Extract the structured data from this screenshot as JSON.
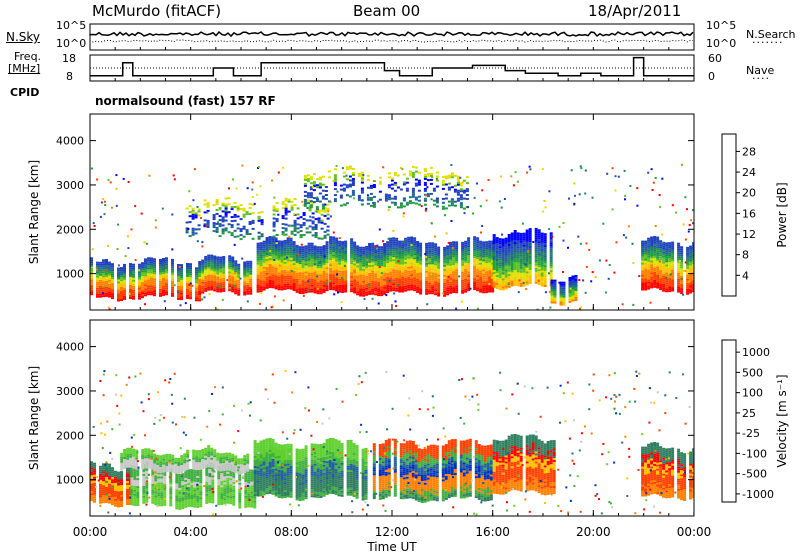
{
  "header": {
    "station": "McMurdo (fitACF)",
    "beam": "Beam 00",
    "date": "18/Apr/2011"
  },
  "strips": {
    "nsky_label": "N.Sky",
    "nsearch_label": "N.Search",
    "freq_label_1": "Freq.",
    "freq_label_2": "[MHz]",
    "nave_label": "Nave",
    "cpid_label": "CPID",
    "cpid_text": "normalsound (fast) 157 RF",
    "noise_ticks_left": [
      "10^5",
      "10^0"
    ],
    "noise_ticks_right": [
      "10^5",
      "10^0"
    ],
    "freq_ticks": [
      "18",
      "8"
    ],
    "nave_ticks": [
      "60",
      "0"
    ],
    "freq_steps_mhz": [
      {
        "t": 0,
        "v": 10
      },
      {
        "t": 1.3,
        "v": 15
      },
      {
        "t": 1.7,
        "v": 10
      },
      {
        "t": 4.9,
        "v": 13
      },
      {
        "t": 5.7,
        "v": 10
      },
      {
        "t": 6.8,
        "v": 15
      },
      {
        "t": 8.3,
        "v": 15
      },
      {
        "t": 9.2,
        "v": 15
      },
      {
        "t": 11.7,
        "v": 12
      },
      {
        "t": 12.3,
        "v": 10
      },
      {
        "t": 13.6,
        "v": 13
      },
      {
        "t": 15.2,
        "v": 14
      },
      {
        "t": 16.5,
        "v": 12
      },
      {
        "t": 17.3,
        "v": 11
      },
      {
        "t": 18.6,
        "v": 10
      },
      {
        "t": 19.5,
        "v": 11
      },
      {
        "t": 20.3,
        "v": 10
      },
      {
        "t": 21.6,
        "v": 17
      },
      {
        "t": 22.0,
        "v": 10
      }
    ]
  },
  "chart_data": [
    {
      "type": "heatmap",
      "parameter": "Power",
      "ylabel": "Slant Range [km]",
      "ylim": [
        180,
        4600
      ],
      "yticks": [
        "1000",
        "2000",
        "3000",
        "4000"
      ],
      "xlim_hours": [
        0,
        24
      ],
      "colorbar": {
        "label": "Power [dB]",
        "tick_labels": [
          "4",
          "8",
          "12",
          "16",
          "20",
          "24",
          "28"
        ],
        "colors": [
          "#0000ff",
          "#2040c0",
          "#2060a0",
          "#208060",
          "#20a040",
          "#60c020",
          "#e0e000",
          "#ffc000",
          "#ff8000",
          "#ff4000",
          "#ff0000"
        ]
      },
      "echo_regions": [
        {
          "t_start": 0.0,
          "t_end": 4.3,
          "r_low": 450,
          "r_high": 1250,
          "level": "high"
        },
        {
          "t_start": 4.3,
          "t_end": 6.5,
          "r_low": 550,
          "r_high": 1300,
          "level": "high"
        },
        {
          "t_start": 6.5,
          "t_end": 9.5,
          "r_low": 600,
          "r_high": 1700,
          "level": "high"
        },
        {
          "t_start": 9.5,
          "t_end": 16.0,
          "r_low": 550,
          "r_high": 1700,
          "level": "high"
        },
        {
          "t_start": 16.0,
          "t_end": 18.3,
          "r_low": 700,
          "r_high": 1900,
          "level": "mid"
        },
        {
          "t_start": 18.3,
          "t_end": 19.3,
          "r_low": 350,
          "r_high": 900,
          "level": "mid"
        },
        {
          "t_start": 21.9,
          "t_end": 24.0,
          "r_low": 600,
          "r_high": 1700,
          "level": "high"
        },
        {
          "t_start": 3.8,
          "t_end": 9.5,
          "r_low": 1800,
          "r_high": 2600,
          "level": "low"
        },
        {
          "t_start": 8.5,
          "t_end": 15.0,
          "r_low": 2500,
          "r_high": 3300,
          "level": "low"
        }
      ]
    },
    {
      "type": "heatmap",
      "parameter": "Velocity",
      "ylabel": "Slant Range [km]",
      "ylim": [
        180,
        4600
      ],
      "yticks": [
        "1000",
        "2000",
        "3000",
        "4000"
      ],
      "xlim_hours": [
        0,
        24
      ],
      "xticks": [
        "00:00",
        "04:00",
        "08:00",
        "12:00",
        "16:00",
        "20:00",
        "00:00"
      ],
      "xlabel": "Time UT",
      "colorbar": {
        "label": "Velocity [m s⁻¹]",
        "tick_labels": [
          "1000",
          "500",
          "100",
          "25",
          "-25",
          "-100",
          "-500",
          "-1000"
        ],
        "colors": [
          "#0030c0",
          "#2060a0",
          "#2f7f5f",
          "#3faf3f",
          "#60d030",
          "#c8c8c8",
          "#ffc000",
          "#ff8000",
          "#ff4000",
          "#ff0000"
        ]
      },
      "echo_regions": [
        {
          "t_start": 0.0,
          "t_end": 1.6,
          "r_low": 450,
          "r_high": 1300,
          "level": "negative"
        },
        {
          "t_start": 1.6,
          "t_end": 6.5,
          "r_low": 400,
          "r_high": 1250,
          "level": "slow_positive"
        },
        {
          "t_start": 1.2,
          "t_end": 8.0,
          "r_low": 1200,
          "r_high": 1600,
          "level": "ground"
        },
        {
          "t_start": 6.5,
          "t_end": 11.0,
          "r_low": 600,
          "r_high": 1800,
          "level": "positive"
        },
        {
          "t_start": 11.0,
          "t_end": 16.0,
          "r_low": 550,
          "r_high": 1800,
          "level": "mixed"
        },
        {
          "t_start": 16.0,
          "t_end": 18.5,
          "r_low": 700,
          "r_high": 1900,
          "level": "negative"
        },
        {
          "t_start": 21.9,
          "t_end": 24.0,
          "r_low": 600,
          "r_high": 1700,
          "level": "negative"
        }
      ]
    }
  ]
}
